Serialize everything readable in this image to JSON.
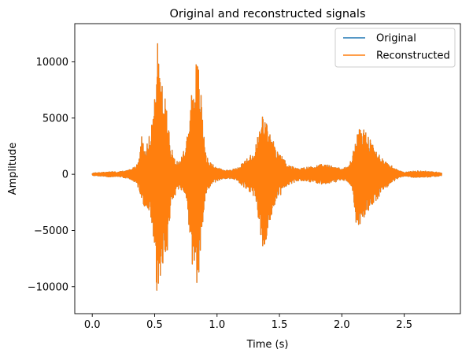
{
  "chart_data": {
    "type": "line",
    "title": "Original and reconstructed signals",
    "xlabel": "Time (s)",
    "ylabel": "Amplitude",
    "xlim": [
      -0.14,
      2.95
    ],
    "ylim": [
      -12400,
      13400
    ],
    "xticks": [
      0.0,
      0.5,
      1.0,
      1.5,
      2.0,
      2.5
    ],
    "xtick_labels": [
      "0.0",
      "0.5",
      "1.0",
      "1.5",
      "2.0",
      "2.5"
    ],
    "yticks": [
      -10000,
      -5000,
      0,
      5000,
      10000
    ],
    "ytick_labels": [
      "−10000",
      "−5000",
      "0",
      "5000",
      "10000"
    ],
    "grid": false,
    "legend_position": "upper right",
    "series": [
      {
        "name": "Original",
        "color": "#1f77b4",
        "envelope": {
          "x": [
            0.0,
            0.05,
            0.1,
            0.15,
            0.2,
            0.25,
            0.3,
            0.35,
            0.38,
            0.4,
            0.41,
            0.42,
            0.43,
            0.45,
            0.48,
            0.5,
            0.52,
            0.54,
            0.56,
            0.58,
            0.6,
            0.63,
            0.66,
            0.7,
            0.73,
            0.77,
            0.8,
            0.82,
            0.84,
            0.86,
            0.88,
            0.9,
            0.92,
            0.95,
            1.0,
            1.05,
            1.1,
            1.15,
            1.2,
            1.25,
            1.3,
            1.33,
            1.35,
            1.37,
            1.39,
            1.41,
            1.43,
            1.45,
            1.47,
            1.5,
            1.53,
            1.56,
            1.6,
            1.65,
            1.7,
            1.75,
            1.8,
            1.85,
            1.9,
            1.95,
            2.0,
            2.05,
            2.08,
            2.1,
            2.12,
            2.14,
            2.16,
            2.18,
            2.2,
            2.23,
            2.26,
            2.3,
            2.35,
            2.38,
            2.42,
            2.46,
            2.5,
            2.55,
            2.6,
            2.65,
            2.7,
            2.75,
            2.8
          ],
          "max": [
            100,
            150,
            200,
            250,
            200,
            300,
            400,
            800,
            1500,
            4300,
            3000,
            2800,
            2600,
            3000,
            5000,
            7000,
            12300,
            9000,
            8000,
            7000,
            6000,
            2500,
            1500,
            1000,
            2000,
            4000,
            8000,
            9500,
            10500,
            9000,
            6000,
            3000,
            1500,
            1000,
            600,
            400,
            400,
            500,
            1000,
            1500,
            2000,
            3800,
            4500,
            5700,
            4800,
            4200,
            3500,
            3000,
            2200,
            1800,
            1500,
            1000,
            700,
            500,
            600,
            700,
            800,
            900,
            800,
            700,
            500,
            700,
            1500,
            2500,
            3500,
            4000,
            4500,
            4000,
            3700,
            3000,
            2500,
            1800,
            1200,
            900,
            600,
            300,
            200,
            250,
            300,
            300,
            250,
            200,
            150
          ],
          "min": [
            -100,
            -150,
            -200,
            -250,
            -200,
            -300,
            -400,
            -800,
            -1500,
            -2500,
            -3500,
            -2800,
            -3000,
            -3000,
            -4500,
            -7000,
            -11300,
            -9000,
            -9000,
            -8000,
            -7000,
            -3000,
            -2000,
            -1200,
            -2000,
            -4000,
            -8000,
            -9500,
            -9800,
            -9000,
            -6000,
            -3000,
            -1500,
            -1000,
            -600,
            -400,
            -400,
            -500,
            -1000,
            -1500,
            -2000,
            -4000,
            -5500,
            -6700,
            -6000,
            -5000,
            -4000,
            -3000,
            -2500,
            -2000,
            -1500,
            -1200,
            -800,
            -600,
            -600,
            -700,
            -800,
            -900,
            -800,
            -700,
            -500,
            -700,
            -1500,
            -3500,
            -5000,
            -4500,
            -4500,
            -4000,
            -3500,
            -3000,
            -2500,
            -2000,
            -1300,
            -900,
            -600,
            -300,
            -200,
            -250,
            -300,
            -300,
            -250,
            -200,
            -150
          ]
        }
      },
      {
        "name": "Reconstructed",
        "color": "#ff7f0e",
        "envelope": {
          "x": [
            0.0,
            0.05,
            0.1,
            0.15,
            0.2,
            0.25,
            0.3,
            0.35,
            0.38,
            0.4,
            0.41,
            0.42,
            0.43,
            0.45,
            0.48,
            0.5,
            0.52,
            0.54,
            0.56,
            0.58,
            0.6,
            0.63,
            0.66,
            0.7,
            0.73,
            0.77,
            0.8,
            0.82,
            0.84,
            0.86,
            0.88,
            0.9,
            0.92,
            0.95,
            1.0,
            1.05,
            1.1,
            1.15,
            1.2,
            1.25,
            1.3,
            1.33,
            1.35,
            1.37,
            1.39,
            1.41,
            1.43,
            1.45,
            1.47,
            1.5,
            1.53,
            1.56,
            1.6,
            1.65,
            1.7,
            1.75,
            1.8,
            1.85,
            1.9,
            1.95,
            2.0,
            2.05,
            2.08,
            2.1,
            2.12,
            2.14,
            2.16,
            2.18,
            2.2,
            2.23,
            2.26,
            2.3,
            2.35,
            2.38,
            2.42,
            2.46,
            2.5,
            2.55,
            2.6,
            2.65,
            2.7,
            2.75,
            2.8
          ],
          "max": [
            100,
            150,
            200,
            250,
            200,
            300,
            400,
            800,
            1500,
            4300,
            3000,
            2800,
            2600,
            3000,
            5000,
            7000,
            12300,
            9000,
            8000,
            7000,
            6000,
            2500,
            1500,
            1000,
            2000,
            4000,
            8000,
            9500,
            10500,
            9000,
            6000,
            3000,
            1500,
            1000,
            600,
            400,
            400,
            500,
            1000,
            1500,
            2000,
            3800,
            4500,
            5700,
            4800,
            4200,
            3500,
            3000,
            2200,
            1800,
            1500,
            1000,
            700,
            500,
            600,
            700,
            800,
            900,
            800,
            700,
            500,
            700,
            1500,
            2500,
            3500,
            4000,
            4500,
            4000,
            3700,
            3000,
            2500,
            1800,
            1200,
            900,
            600,
            300,
            200,
            250,
            300,
            300,
            250,
            200,
            150
          ],
          "min": [
            -100,
            -150,
            -200,
            -250,
            -200,
            -300,
            -400,
            -800,
            -1500,
            -2500,
            -3500,
            -2800,
            -3000,
            -3000,
            -4500,
            -7000,
            -11300,
            -9000,
            -9000,
            -8000,
            -7000,
            -3000,
            -2000,
            -1200,
            -2000,
            -4000,
            -8000,
            -9500,
            -9800,
            -9000,
            -6000,
            -3000,
            -1500,
            -1000,
            -600,
            -400,
            -400,
            -500,
            -1000,
            -1500,
            -2000,
            -4000,
            -5500,
            -6700,
            -6000,
            -5000,
            -4000,
            -3000,
            -2500,
            -2000,
            -1500,
            -1200,
            -800,
            -600,
            -600,
            -700,
            -800,
            -900,
            -800,
            -700,
            -500,
            -700,
            -1500,
            -3500,
            -5000,
            -4500,
            -4500,
            -4000,
            -3500,
            -3000,
            -2500,
            -2000,
            -1300,
            -900,
            -600,
            -300,
            -200,
            -250,
            -300,
            -300,
            -250,
            -200,
            -150
          ]
        }
      }
    ]
  }
}
